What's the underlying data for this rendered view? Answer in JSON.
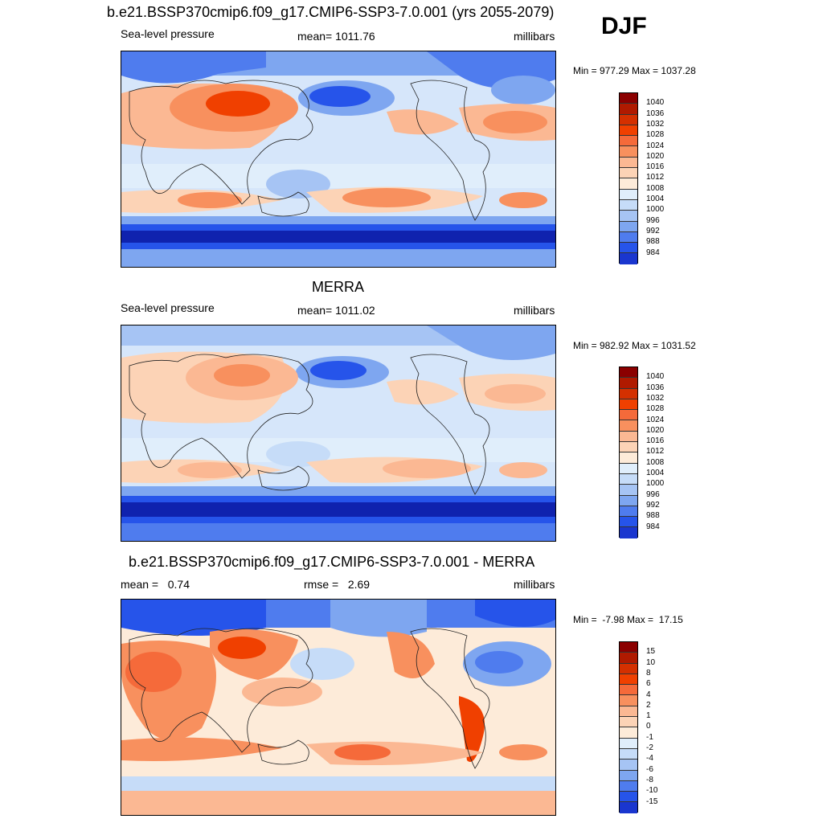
{
  "season": "DJF",
  "panels": [
    {
      "title": "b.e21.BSSP370cmip6.f09_g17.CMIP6-SSP3-7.0.001 (yrs 2055-2079)",
      "left": "Sea-level pressure",
      "center": "mean= 1011.76",
      "right": "millibars",
      "minmax": "Min = 977.29 Max = 1037.28",
      "colorbar": {
        "colors": [
          "#8b0000",
          "#b01a00",
          "#d43000",
          "#f04000",
          "#f56a3a",
          "#f8905e",
          "#fbb893",
          "#fcd3b6",
          "#fdebd9",
          "#e0eefb",
          "#c6dcf8",
          "#a6c4f4",
          "#7ea6f0",
          "#4f7cee",
          "#2654ea",
          "#1a36cf",
          "#0f22ae",
          "#001489"
        ],
        "labels": [
          "1040",
          "1036",
          "1032",
          "1028",
          "1024",
          "1020",
          "1016",
          "1012",
          "1008",
          "1004",
          "1000",
          "996",
          "992",
          "988",
          "984"
        ]
      }
    },
    {
      "title": "MERRA",
      "left": "Sea-level pressure",
      "center": "mean= 1011.02",
      "right": "millibars",
      "minmax": "Min = 982.92 Max = 1031.52",
      "colorbar": {
        "colors": [
          "#8b0000",
          "#b01a00",
          "#d43000",
          "#f04000",
          "#f56a3a",
          "#f8905e",
          "#fbb893",
          "#fcd3b6",
          "#fdebd9",
          "#e0eefb",
          "#c6dcf8",
          "#a6c4f4",
          "#7ea6f0",
          "#4f7cee",
          "#2654ea",
          "#1a36cf",
          "#0f22ae",
          "#001489"
        ],
        "labels": [
          "1040",
          "1036",
          "1032",
          "1028",
          "1024",
          "1020",
          "1016",
          "1012",
          "1008",
          "1004",
          "1000",
          "996",
          "992",
          "988",
          "984"
        ]
      }
    },
    {
      "title": "b.e21.BSSP370cmip6.f09_g17.CMIP6-SSP3-7.0.001 - MERRA",
      "left": "mean =   0.74",
      "center": "rmse =   2.69",
      "right": "millibars",
      "minmax": "Min =  -7.98 Max =  17.15",
      "colorbar": {
        "colors": [
          "#8b0000",
          "#b01a00",
          "#d43000",
          "#f04000",
          "#f56a3a",
          "#f8905e",
          "#fbb893",
          "#fcd3b6",
          "#fdebd9",
          "#e0eefb",
          "#c6dcf8",
          "#a6c4f4",
          "#7ea6f0",
          "#4f7cee",
          "#2654ea",
          "#1a36cf",
          "#0f22ae",
          "#001489"
        ],
        "labels": [
          "15",
          "10",
          "8",
          "6",
          "4",
          "2",
          "1",
          "0",
          "-1",
          "-2",
          "-4",
          "-6",
          "-8",
          "-10",
          "-15"
        ]
      }
    }
  ]
}
